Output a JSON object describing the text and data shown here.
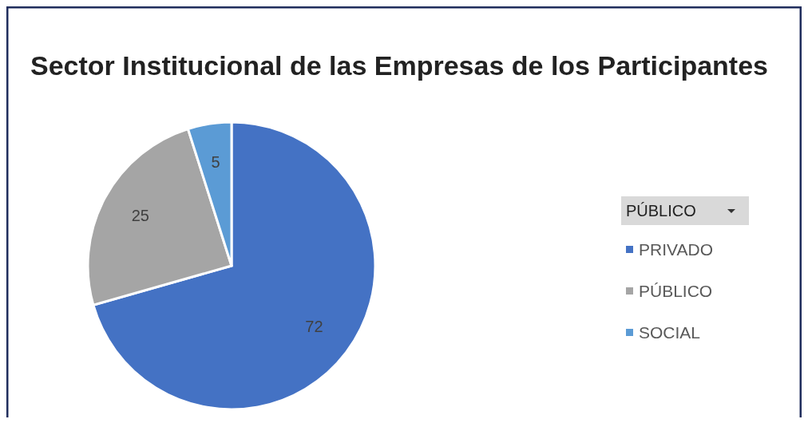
{
  "chart_data": {
    "type": "pie",
    "title": "Sector Institucional de las Empresas de los Participantes",
    "legend_title": "PÚBLICO",
    "categories": [
      "PRIVADO",
      "PÚBLICO",
      "SOCIAL"
    ],
    "values": [
      72,
      25,
      5
    ],
    "colors": [
      "#4472c4",
      "#a5a5a5",
      "#5b9bd5"
    ],
    "data_labels": true,
    "legend": "right"
  }
}
